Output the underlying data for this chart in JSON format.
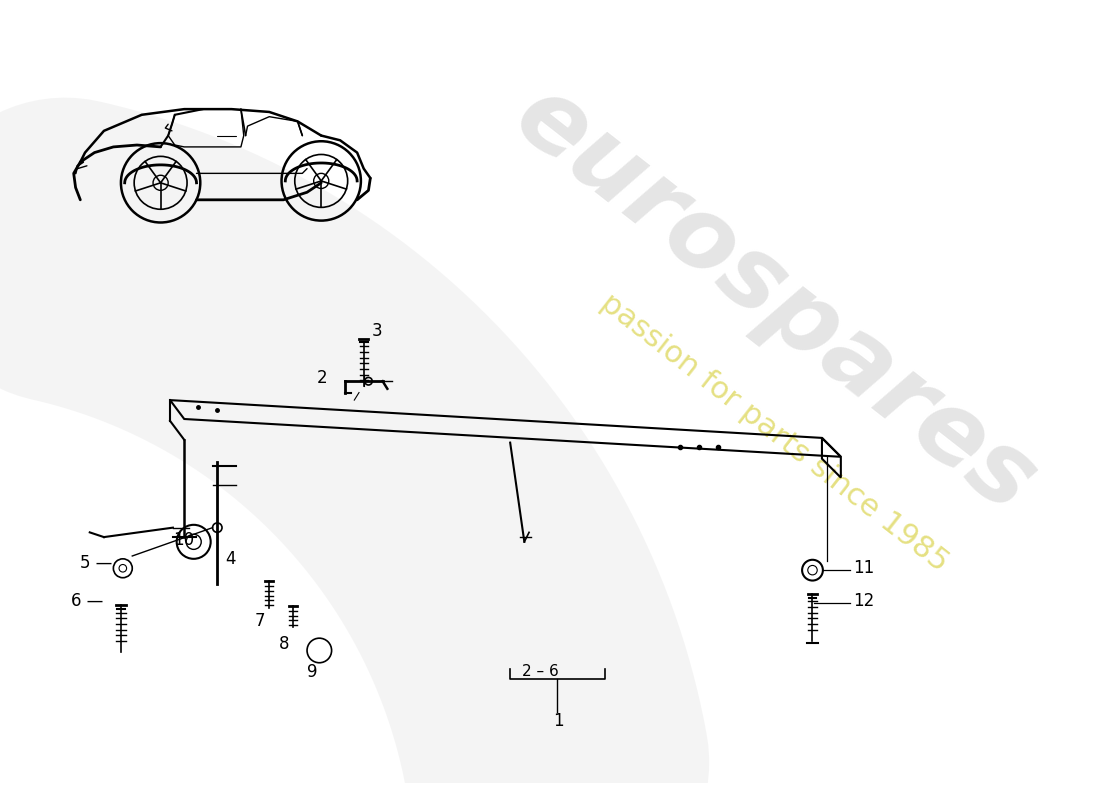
{
  "background_color": "#ffffff",
  "fig_width": 11.0,
  "fig_height": 8.0,
  "watermark_text": "eurospares",
  "watermark_subtext": "passion for parts since 1985",
  "watermark_color": "#cccccc",
  "watermark_subcolor": "#d4cc30",
  "watermark_alpha": 0.5,
  "watermark_sub_alpha": 0.6
}
